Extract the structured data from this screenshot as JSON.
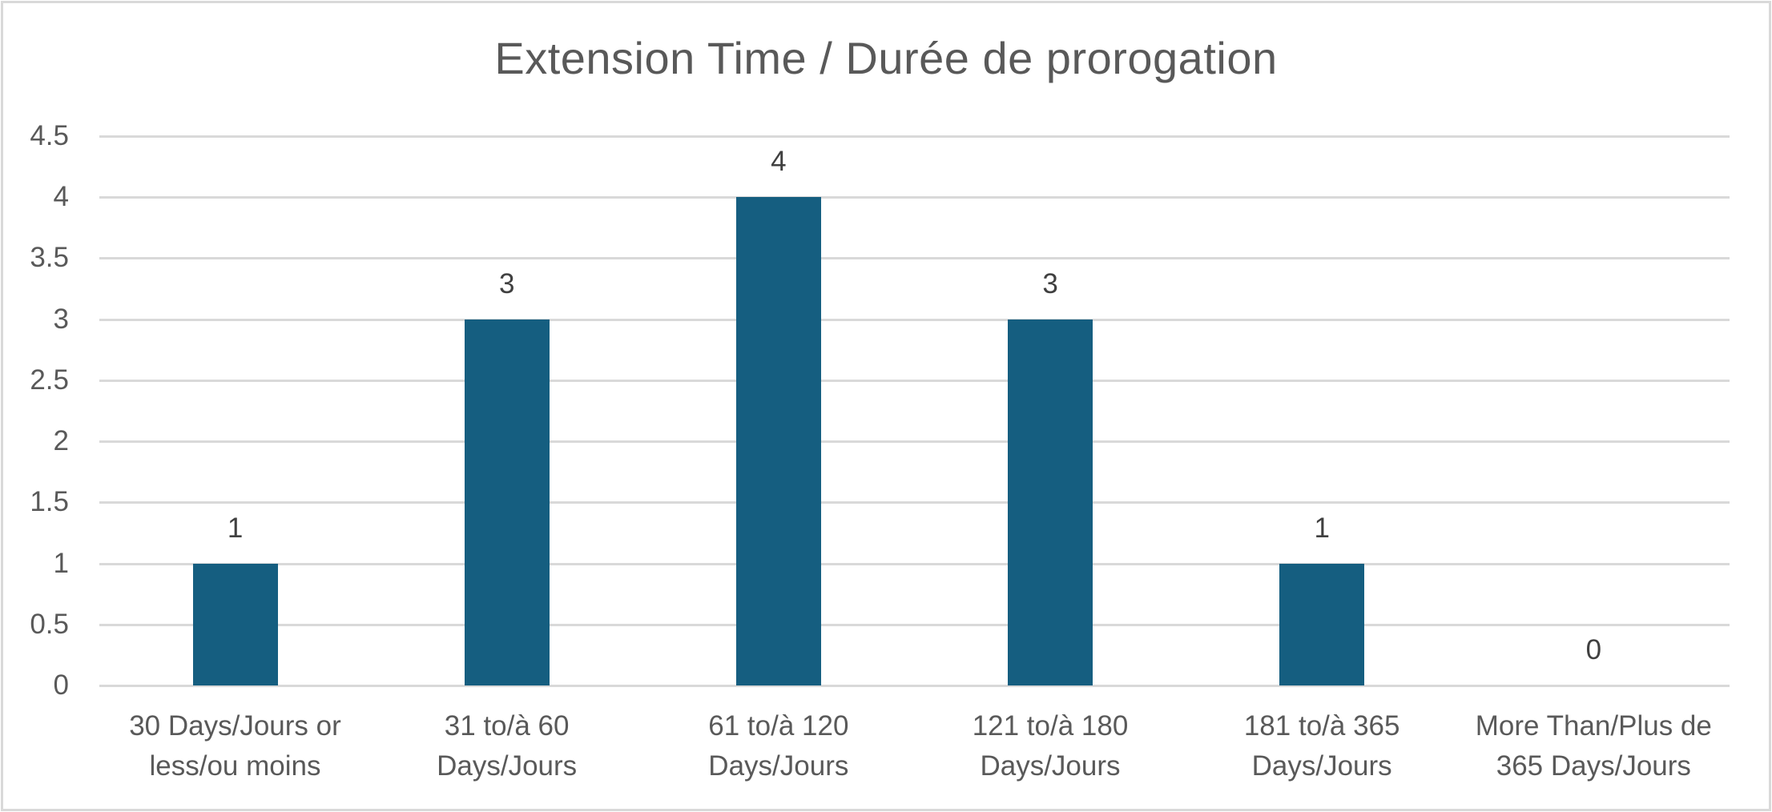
{
  "chart_data": {
    "type": "bar",
    "title": "Extension Time / Durée de prorogation",
    "xlabel": "",
    "ylabel": "",
    "ylim": [
      0,
      4.5
    ],
    "yticks": [
      "0",
      "0.5",
      "1",
      "1.5",
      "2",
      "2.5",
      "3",
      "3.5",
      "4",
      "4.5"
    ],
    "grid": true,
    "legend": null,
    "categories": [
      [
        "30 Days/Jours or",
        "less/ou moins"
      ],
      [
        "31 to/à 60",
        "Days/Jours"
      ],
      [
        "61 to/à 120",
        "Days/Jours"
      ],
      [
        "121 to/à 180",
        "Days/Jours"
      ],
      [
        "181 to/à 365",
        "Days/Jours"
      ],
      [
        "More Than/Plus de",
        "365 Days/Jours"
      ]
    ],
    "values": [
      1,
      3,
      4,
      3,
      1,
      0
    ],
    "data_labels": [
      "1",
      "3",
      "4",
      "3",
      "1",
      "0"
    ],
    "bar_color": "#155e80"
  }
}
